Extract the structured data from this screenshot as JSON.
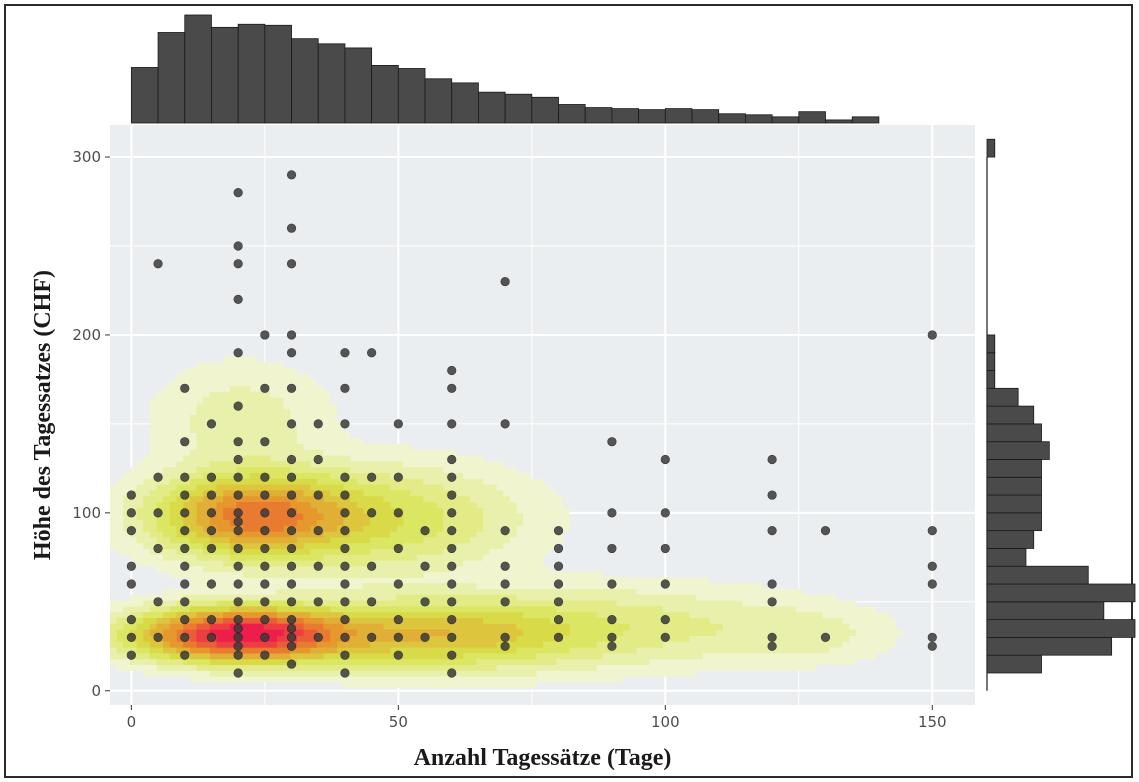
{
  "chart_data": {
    "type": "scatter",
    "title": "",
    "xlabel": "Anzahl Tagessätze (Tage)",
    "ylabel": "Höhe des Tagessatzes (CHF)",
    "xlim": [
      -4,
      158
    ],
    "ylim": [
      -8,
      318
    ],
    "x_ticks": [
      0,
      50,
      100,
      150
    ],
    "y_ticks": [
      0,
      100,
      200,
      300
    ],
    "grid": true,
    "colors": {
      "panel": "#ebeef0",
      "gridline": "#ffffff",
      "point": "#3a3a3a",
      "histogram": "#4a4a4a",
      "density_low": "#f0f5cf",
      "density_mid": "#d6e34a",
      "density_high": "#e8902a",
      "density_peak": "#ee1e4a"
    },
    "points": [
      [
        0,
        20
      ],
      [
        0,
        30
      ],
      [
        0,
        40
      ],
      [
        0,
        60
      ],
      [
        0,
        70
      ],
      [
        0,
        90
      ],
      [
        0,
        100
      ],
      [
        0,
        110
      ],
      [
        5,
        240
      ],
      [
        5,
        30
      ],
      [
        5,
        50
      ],
      [
        5,
        80
      ],
      [
        5,
        100
      ],
      [
        5,
        120
      ],
      [
        10,
        20
      ],
      [
        10,
        30
      ],
      [
        10,
        40
      ],
      [
        10,
        50
      ],
      [
        10,
        60
      ],
      [
        10,
        70
      ],
      [
        10,
        80
      ],
      [
        10,
        90
      ],
      [
        10,
        100
      ],
      [
        10,
        110
      ],
      [
        10,
        120
      ],
      [
        10,
        140
      ],
      [
        10,
        170
      ],
      [
        15,
        30
      ],
      [
        15,
        40
      ],
      [
        15,
        60
      ],
      [
        15,
        80
      ],
      [
        15,
        90
      ],
      [
        15,
        100
      ],
      [
        15,
        110
      ],
      [
        15,
        120
      ],
      [
        15,
        150
      ],
      [
        20,
        10
      ],
      [
        20,
        20
      ],
      [
        20,
        25
      ],
      [
        20,
        30
      ],
      [
        20,
        35
      ],
      [
        20,
        40
      ],
      [
        20,
        50
      ],
      [
        20,
        60
      ],
      [
        20,
        70
      ],
      [
        20,
        80
      ],
      [
        20,
        90
      ],
      [
        20,
        95
      ],
      [
        20,
        100
      ],
      [
        20,
        110
      ],
      [
        20,
        120
      ],
      [
        20,
        130
      ],
      [
        20,
        140
      ],
      [
        20,
        160
      ],
      [
        20,
        190
      ],
      [
        20,
        220
      ],
      [
        20,
        240
      ],
      [
        20,
        250
      ],
      [
        20,
        280
      ],
      [
        25,
        20
      ],
      [
        25,
        30
      ],
      [
        25,
        40
      ],
      [
        25,
        50
      ],
      [
        25,
        60
      ],
      [
        25,
        70
      ],
      [
        25,
        80
      ],
      [
        25,
        90
      ],
      [
        25,
        100
      ],
      [
        25,
        110
      ],
      [
        25,
        120
      ],
      [
        25,
        140
      ],
      [
        25,
        170
      ],
      [
        25,
        200
      ],
      [
        30,
        15
      ],
      [
        30,
        25
      ],
      [
        30,
        30
      ],
      [
        30,
        35
      ],
      [
        30,
        40
      ],
      [
        30,
        50
      ],
      [
        30,
        60
      ],
      [
        30,
        70
      ],
      [
        30,
        80
      ],
      [
        30,
        90
      ],
      [
        30,
        100
      ],
      [
        30,
        110
      ],
      [
        30,
        120
      ],
      [
        30,
        130
      ],
      [
        30,
        150
      ],
      [
        30,
        170
      ],
      [
        30,
        190
      ],
      [
        30,
        200
      ],
      [
        30,
        240
      ],
      [
        30,
        260
      ],
      [
        30,
        290
      ],
      [
        35,
        30
      ],
      [
        35,
        50
      ],
      [
        35,
        70
      ],
      [
        35,
        90
      ],
      [
        35,
        110
      ],
      [
        35,
        130
      ],
      [
        35,
        150
      ],
      [
        40,
        10
      ],
      [
        40,
        20
      ],
      [
        40,
        30
      ],
      [
        40,
        40
      ],
      [
        40,
        50
      ],
      [
        40,
        60
      ],
      [
        40,
        70
      ],
      [
        40,
        80
      ],
      [
        40,
        90
      ],
      [
        40,
        100
      ],
      [
        40,
        110
      ],
      [
        40,
        120
      ],
      [
        40,
        150
      ],
      [
        40,
        170
      ],
      [
        40,
        190
      ],
      [
        45,
        30
      ],
      [
        45,
        50
      ],
      [
        45,
        70
      ],
      [
        45,
        100
      ],
      [
        45,
        120
      ],
      [
        45,
        190
      ],
      [
        50,
        20
      ],
      [
        50,
        30
      ],
      [
        50,
        40
      ],
      [
        50,
        60
      ],
      [
        50,
        80
      ],
      [
        50,
        100
      ],
      [
        50,
        120
      ],
      [
        50,
        150
      ],
      [
        55,
        30
      ],
      [
        55,
        50
      ],
      [
        55,
        70
      ],
      [
        55,
        90
      ],
      [
        60,
        10
      ],
      [
        60,
        20
      ],
      [
        60,
        30
      ],
      [
        60,
        40
      ],
      [
        60,
        50
      ],
      [
        60,
        60
      ],
      [
        60,
        70
      ],
      [
        60,
        80
      ],
      [
        60,
        90
      ],
      [
        60,
        100
      ],
      [
        60,
        110
      ],
      [
        60,
        120
      ],
      [
        60,
        130
      ],
      [
        60,
        150
      ],
      [
        60,
        170
      ],
      [
        60,
        180
      ],
      [
        70,
        25
      ],
      [
        70,
        30
      ],
      [
        70,
        50
      ],
      [
        70,
        60
      ],
      [
        70,
        70
      ],
      [
        70,
        90
      ],
      [
        70,
        150
      ],
      [
        70,
        230
      ],
      [
        80,
        30
      ],
      [
        80,
        40
      ],
      [
        80,
        50
      ],
      [
        80,
        60
      ],
      [
        80,
        70
      ],
      [
        80,
        80
      ],
      [
        80,
        90
      ],
      [
        90,
        25
      ],
      [
        90,
        30
      ],
      [
        90,
        40
      ],
      [
        90,
        60
      ],
      [
        90,
        80
      ],
      [
        90,
        100
      ],
      [
        90,
        140
      ],
      [
        100,
        30
      ],
      [
        100,
        40
      ],
      [
        100,
        60
      ],
      [
        100,
        80
      ],
      [
        100,
        100
      ],
      [
        100,
        130
      ],
      [
        120,
        25
      ],
      [
        120,
        30
      ],
      [
        120,
        50
      ],
      [
        120,
        60
      ],
      [
        120,
        90
      ],
      [
        120,
        110
      ],
      [
        120,
        130
      ],
      [
        130,
        30
      ],
      [
        130,
        90
      ],
      [
        150,
        25
      ],
      [
        150,
        30
      ],
      [
        150,
        60
      ],
      [
        150,
        70
      ],
      [
        150,
        90
      ],
      [
        150,
        200
      ]
    ],
    "x_histogram": {
      "bin_width": 5,
      "start": 0,
      "counts": [
        54,
        88,
        105,
        93,
        96,
        95,
        82,
        77,
        73,
        56,
        53,
        43,
        39,
        30,
        28,
        25,
        18,
        15,
        14,
        13,
        14,
        13,
        9,
        8,
        6,
        11,
        3,
        6
      ]
    },
    "y_histogram": {
      "bin_width": 10,
      "start": 10,
      "counts": [
        7,
        16,
        19,
        15,
        19,
        13,
        5,
        6,
        7,
        7,
        7,
        7,
        8,
        7,
        6,
        4,
        1,
        1,
        1,
        0,
        0,
        0,
        0,
        0,
        0,
        0,
        0,
        0,
        0,
        1
      ]
    },
    "density": {
      "peaks": [
        {
          "x": 20,
          "y": 30,
          "sx": 12,
          "sy": 9,
          "weight": 1.0
        },
        {
          "x": 22,
          "y": 97,
          "sx": 11,
          "sy": 14,
          "weight": 0.6
        },
        {
          "x": 55,
          "y": 30,
          "sx": 18,
          "sy": 12,
          "weight": 0.35
        },
        {
          "x": 45,
          "y": 95,
          "sx": 16,
          "sy": 18,
          "weight": 0.22
        },
        {
          "x": 90,
          "y": 35,
          "sx": 22,
          "sy": 14,
          "weight": 0.12
        },
        {
          "x": 125,
          "y": 30,
          "sx": 10,
          "sy": 10,
          "weight": 0.06
        },
        {
          "x": 20,
          "y": 150,
          "sx": 10,
          "sy": 20,
          "weight": 0.08
        }
      ],
      "levels": 12
    }
  }
}
